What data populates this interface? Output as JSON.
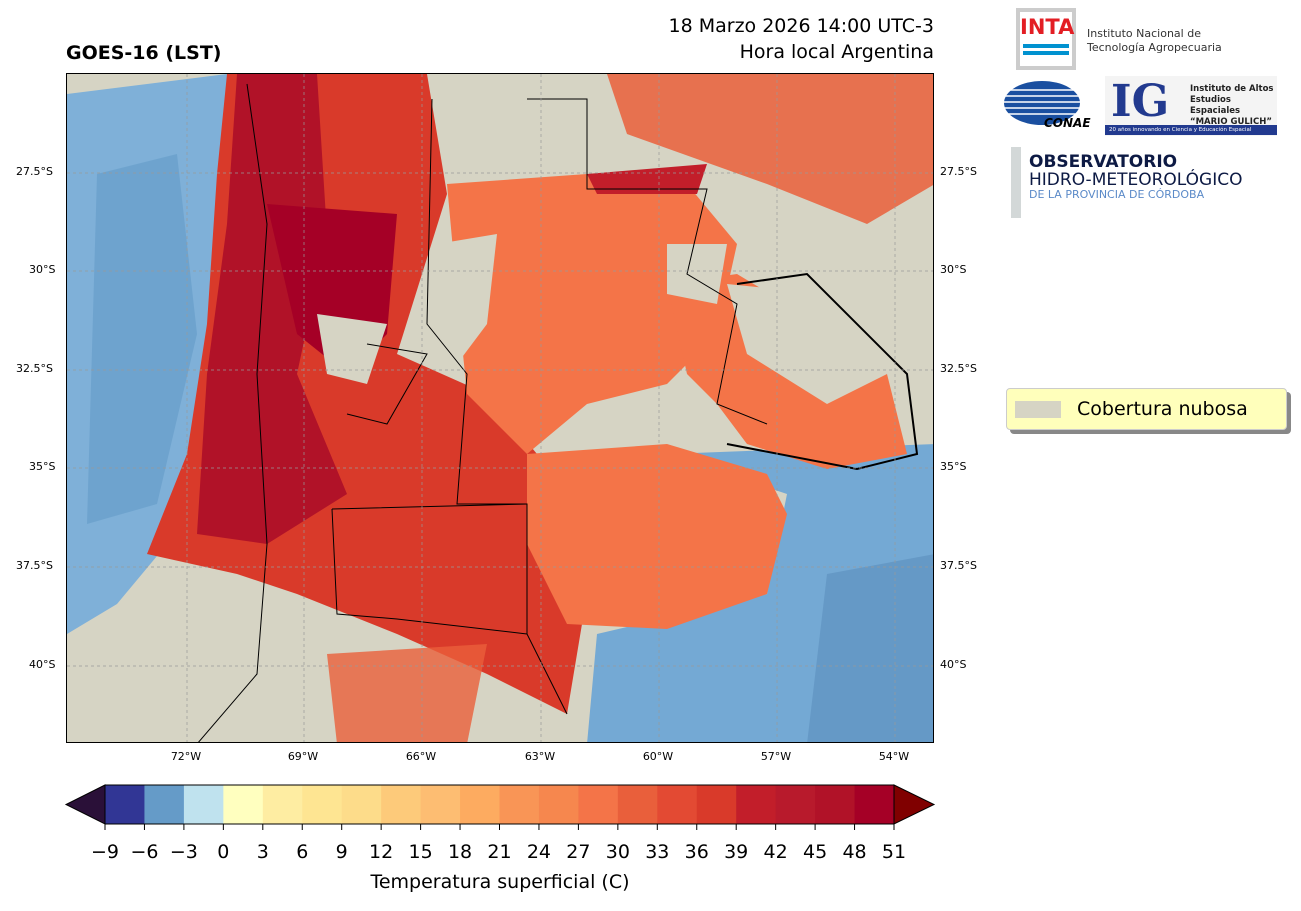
{
  "header": {
    "title_left": "GOES-16 (LST)",
    "datetime": "18 Marzo 2026 14:00 UTC-3",
    "timezone": "Hora local Argentina"
  },
  "map": {
    "lat_labels": [
      "27.5°S",
      "30°S",
      "32.5°S",
      "35°S",
      "37.5°S",
      "40°S"
    ],
    "lon_labels": [
      "72°W",
      "69°W",
      "66°W",
      "63°W",
      "60°W",
      "57°W",
      "54°W"
    ],
    "land_color": "#d6d4c4"
  },
  "legend": {
    "label": "Cobertura nubosa",
    "color": "#d6d4c4"
  },
  "colorbar": {
    "label": "Temperatura superficial (C)",
    "ticks": [
      "−9",
      "−6",
      "−3",
      "0",
      "3",
      "6",
      "9",
      "12",
      "15",
      "18",
      "21",
      "24",
      "27",
      "30",
      "33",
      "36",
      "39",
      "42",
      "45",
      "48",
      "51"
    ],
    "colors": [
      "#313695",
      "#659bc8",
      "#bfe2ee",
      "#ffffbf",
      "#feeda2",
      "#fee592",
      "#fddc8a",
      "#fdca7a",
      "#fdbd72",
      "#fdab60",
      "#f99556",
      "#f6874e",
      "#f47448",
      "#e95f3b",
      "#e34a33",
      "#d93a2a",
      "#c21e2a",
      "#b81a2c",
      "#b11228",
      "#a50026"
    ],
    "under_color": "#2a1038",
    "over_color": "#800000"
  },
  "logos": {
    "inta": {
      "mark": "INTA",
      "name_line1": "Instituto Nacional de",
      "name_line2": "Tecnología Agropecuaria"
    },
    "conae": {
      "mark": "CONAE"
    },
    "ig": {
      "mark": "IG",
      "line1": "Instituto de Altos",
      "line2": "Estudios Espaciales",
      "line3": "“MARIO GULICH”",
      "tagline": "20 años innovando en Ciencia y Educación Espacial"
    },
    "observatorio": {
      "line1": "OBSERVATORIO",
      "line2": "HIDRO-METEOROLÓGICO",
      "line3": "DE LA PROVINCIA DE CÓRDOBA"
    }
  }
}
